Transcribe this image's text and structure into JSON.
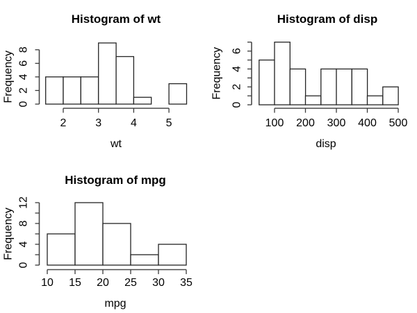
{
  "figure": {
    "background": "#ffffff",
    "text_color": "#000000",
    "axis_color": "#4a4a4a",
    "bar_fill": "#ffffff",
    "bar_stroke": "#242424"
  },
  "chart_data": [
    {
      "type": "bar",
      "subtype": "histogram",
      "title": "Histogram of wt",
      "xlabel": "wt",
      "ylabel": "Frequency",
      "bin_start": 1.5,
      "bin_width": 0.5,
      "bin_edges": [
        1.5,
        2,
        2.5,
        3,
        3.5,
        4,
        4.5,
        5,
        5.5
      ],
      "values": [
        4,
        4,
        4,
        9,
        7,
        1,
        0,
        3
      ],
      "x_ticks": [
        2,
        3,
        4,
        5
      ],
      "y_ticks": [
        0,
        2,
        4,
        6,
        8
      ],
      "y_labeled_ticks": [
        0,
        2,
        4,
        6,
        8
      ],
      "xlim": [
        1.5,
        5.5
      ],
      "ylim": [
        0,
        9
      ],
      "grid": false,
      "legend": null
    },
    {
      "type": "bar",
      "subtype": "histogram",
      "title": "Histogram of disp",
      "xlabel": "disp",
      "ylabel": "Frequency",
      "bin_start": 50,
      "bin_width": 50,
      "bin_edges": [
        50,
        100,
        150,
        200,
        250,
        300,
        350,
        400,
        450,
        500
      ],
      "values": [
        5,
        7,
        4,
        1,
        4,
        4,
        4,
        1,
        2
      ],
      "x_ticks": [
        100,
        200,
        300,
        400,
        500
      ],
      "y_ticks": [
        0,
        1,
        2,
        3,
        4,
        5,
        6,
        7
      ],
      "y_labeled_ticks": [
        0,
        2,
        4,
        6
      ],
      "xlim": [
        50,
        500
      ],
      "ylim": [
        0,
        7
      ],
      "grid": false,
      "legend": null
    },
    {
      "type": "bar",
      "subtype": "histogram",
      "title": "Histogram of mpg",
      "xlabel": "mpg",
      "ylabel": "Frequency",
      "bin_start": 10,
      "bin_width": 5,
      "bin_edges": [
        10,
        15,
        20,
        25,
        30,
        35
      ],
      "values": [
        6,
        12,
        8,
        2,
        4
      ],
      "x_ticks": [
        10,
        15,
        20,
        25,
        30,
        35
      ],
      "y_ticks": [
        0,
        2,
        4,
        6,
        8,
        10,
        12
      ],
      "y_labeled_ticks": [
        0,
        4,
        8,
        12
      ],
      "xlim": [
        10,
        35
      ],
      "ylim": [
        0,
        12
      ],
      "grid": false,
      "legend": null
    }
  ]
}
